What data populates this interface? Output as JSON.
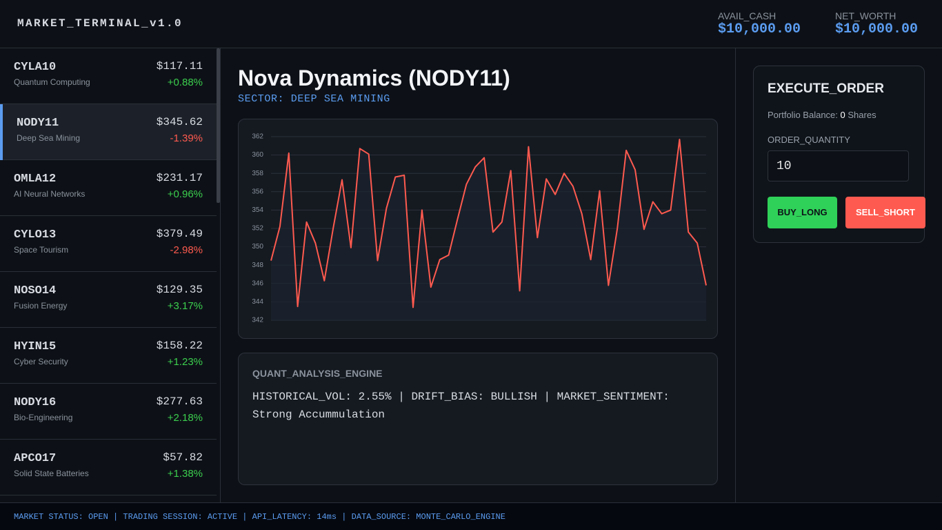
{
  "header": {
    "title": "MARKET_TERMINAL_v1.0",
    "cash_label": "AVAIL_CASH",
    "cash_value": "$10,000.00",
    "worth_label": "NET_WORTH",
    "worth_value": "$10,000.00"
  },
  "watchlist": [
    {
      "ticker": "CYLA10",
      "name": "Quantum Computing",
      "price": "$117.11",
      "change": "+0.88%"
    },
    {
      "ticker": "NODY11",
      "name": "Deep Sea Mining",
      "price": "$345.62",
      "change": "-1.39%"
    },
    {
      "ticker": "OMLA12",
      "name": "AI Neural Networks",
      "price": "$231.17",
      "change": "+0.96%"
    },
    {
      "ticker": "CYLO13",
      "name": "Space Tourism",
      "price": "$379.49",
      "change": "-2.98%"
    },
    {
      "ticker": "NOSO14",
      "name": "Fusion Energy",
      "price": "$129.35",
      "change": "+3.17%"
    },
    {
      "ticker": "HYIN15",
      "name": "Cyber Security",
      "price": "$158.22",
      "change": "+1.23%"
    },
    {
      "ticker": "NODY16",
      "name": "Bio-Engineering",
      "price": "$277.63",
      "change": "+2.18%"
    },
    {
      "ticker": "APCO17",
      "name": "Solid State Batteries",
      "price": "$57.82",
      "change": "+1.38%"
    }
  ],
  "selected": 1,
  "detail": {
    "title": "Nova Dynamics (NODY11)",
    "sector": "SECTOR: DEEP SEA MINING"
  },
  "chart_data": {
    "type": "line",
    "color": "#ff5a4f",
    "grid": true,
    "values": [
      348.5,
      352.2,
      360.2,
      343.5,
      352.7,
      350.4,
      346.3,
      352.0,
      357.3,
      349.9,
      360.7,
      360.1,
      348.5,
      354.2,
      357.6,
      357.8,
      343.4,
      354.0,
      345.6,
      348.6,
      349.1,
      353.0,
      356.8,
      358.7,
      359.7,
      351.6,
      352.7,
      358.3,
      345.2,
      360.9,
      351.0,
      357.4,
      355.7,
      358.0,
      356.6,
      353.6,
      348.6,
      356.1,
      345.8,
      352.0,
      360.5,
      358.4,
      351.9,
      354.9,
      353.6,
      354.0,
      361.7,
      351.6,
      350.4,
      345.8
    ],
    "ylim": [
      342,
      362
    ],
    "yticks": [
      342,
      344,
      346,
      348,
      350,
      352,
      354,
      356,
      358,
      360,
      362
    ]
  },
  "quant": {
    "title": "QUANT_ANALYSIS_ENGINE",
    "text": "HISTORICAL_VOL: 2.55% | DRIFT_BIAS: BULLISH | MARKET_SENTIMENT: Strong Accummulation"
  },
  "order": {
    "title": "EXECUTE_ORDER",
    "balance_label": "Portfolio Balance:",
    "balance_value": "0",
    "balance_unit": "Shares",
    "quantity_label": "ORDER_QUANTITY",
    "quantity": "10",
    "buy": "BUY_LONG",
    "sell": "SELL_SHORT"
  },
  "footer": "MARKET STATUS: OPEN | TRADING SESSION: ACTIVE | API_LATENCY: 14ms | DATA_SOURCE: MONTE_CARLO_ENGINE"
}
